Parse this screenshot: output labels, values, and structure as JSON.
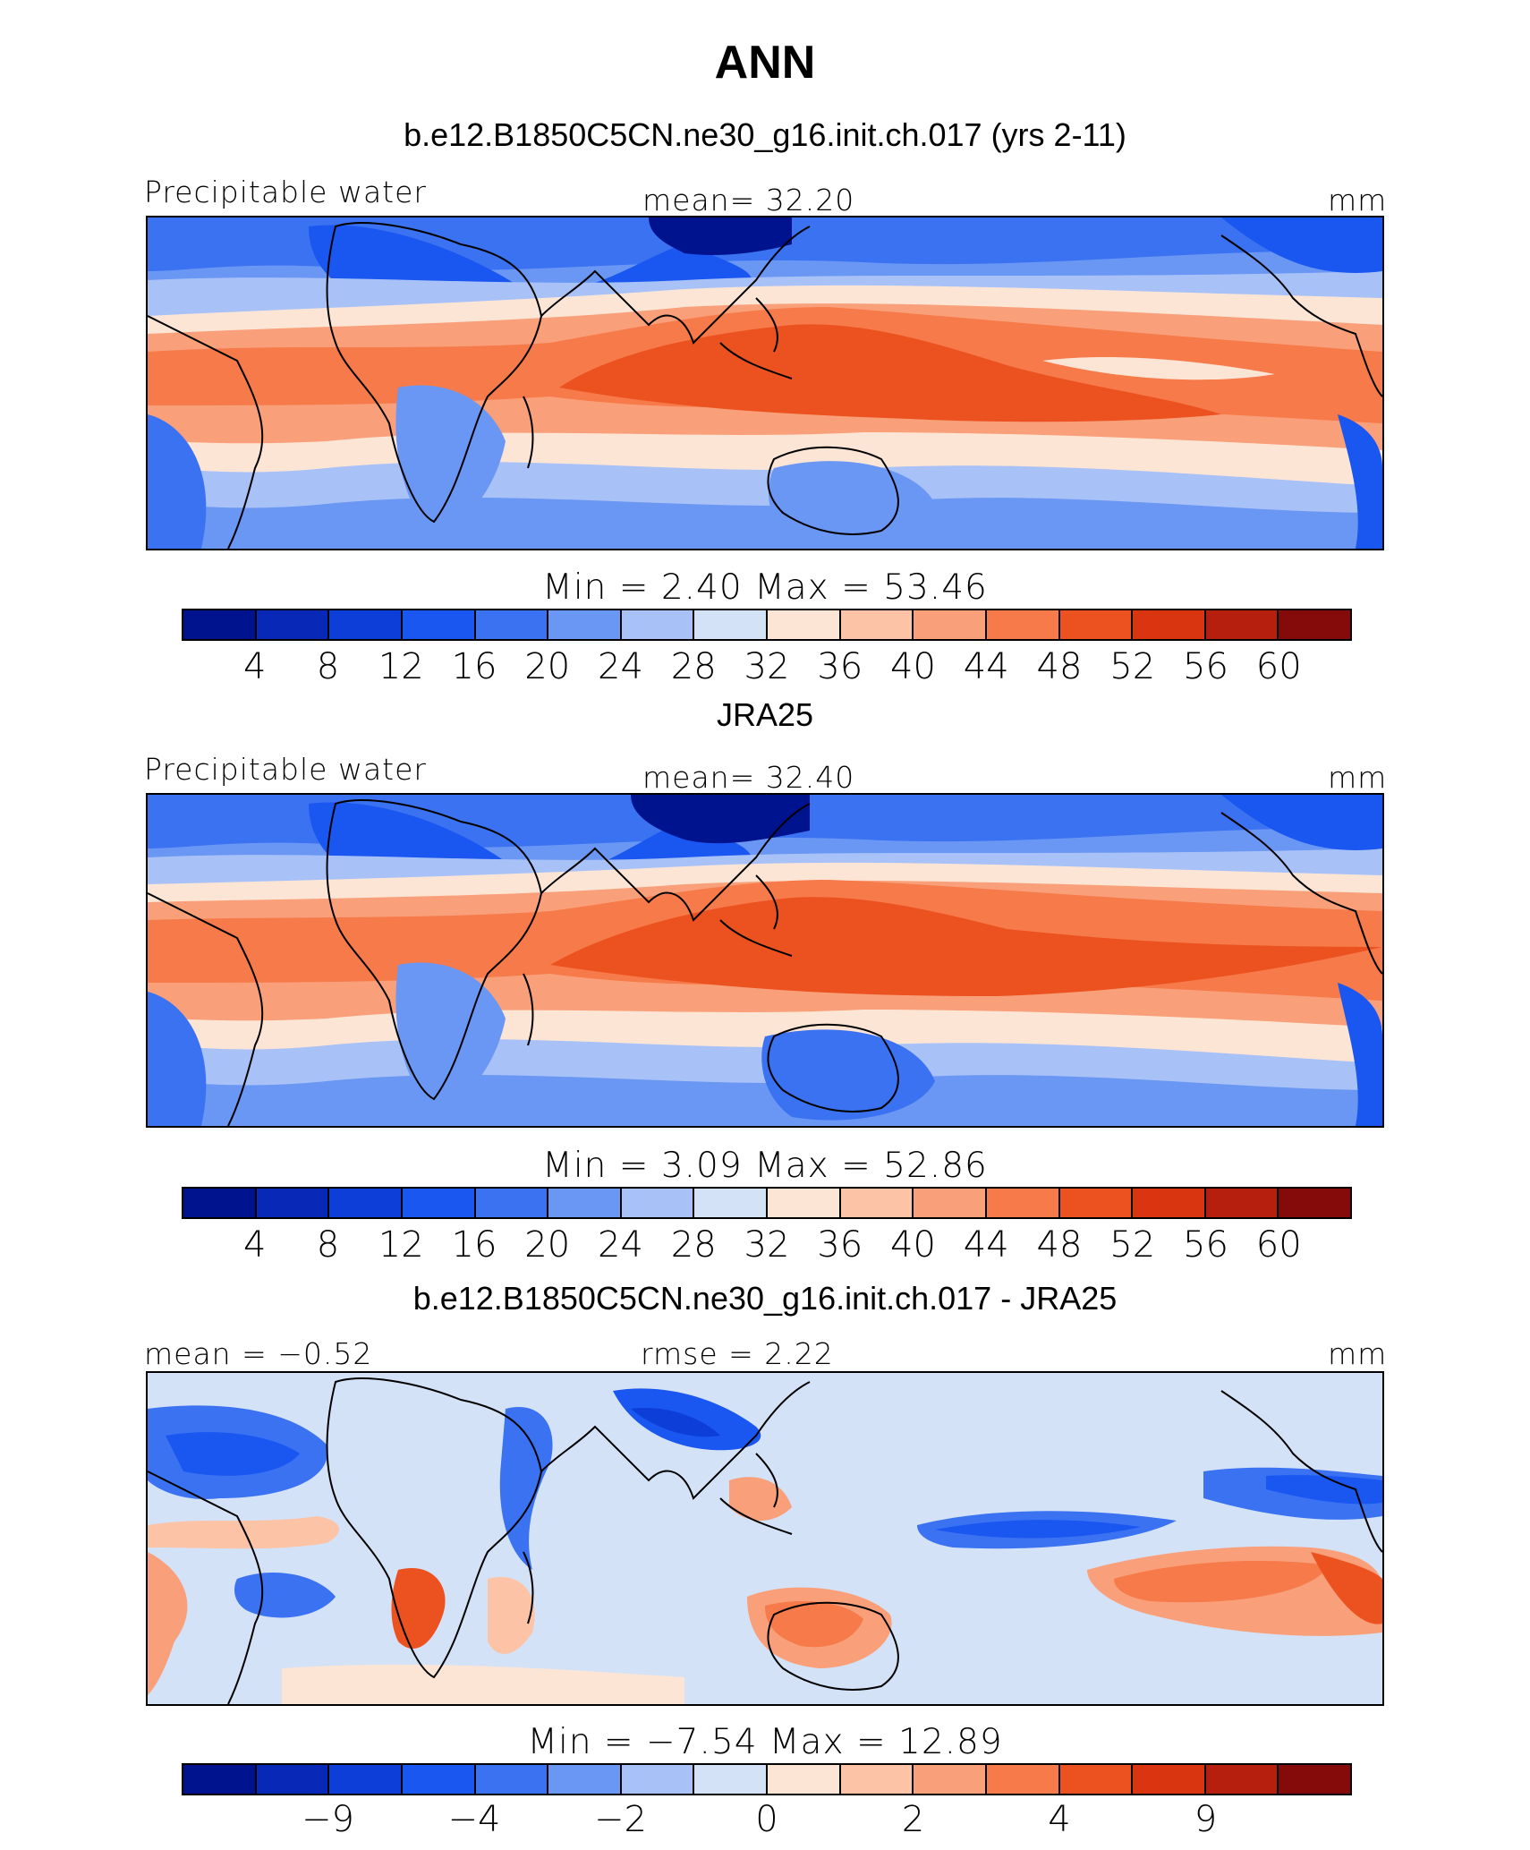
{
  "figure_title": "ANN",
  "colors": {
    "sequential": [
      "#00138f",
      "#0828b8",
      "#0d3ed8",
      "#1a56f0",
      "#3a72f2",
      "#6a96f4",
      "#a8c2f7",
      "#d4e2f7",
      "#fde5d6",
      "#fcc3a6",
      "#f9a07a",
      "#f67a4a",
      "#ec5220",
      "#d93511",
      "#b61e0d",
      "#850b0b"
    ],
    "diverging": [
      "#00138f",
      "#0828b8",
      "#0d3ed8",
      "#1a56f0",
      "#3a72f2",
      "#6a96f4",
      "#a8c2f7",
      "#d4e2f7",
      "#fde5d6",
      "#fcc3a6",
      "#f9a07a",
      "#f67a4a",
      "#ec5220",
      "#d93511",
      "#b61e0d",
      "#850b0b"
    ]
  },
  "panels": [
    {
      "title": "b.e12.B1850C5CN.ne30_g16.init.ch.017 (yrs 2-11)",
      "left_label": "Precipitable water",
      "center_label": "mean=   32.20",
      "units": "mm",
      "minmax": "Min  =    2.40  Max  =   53.46",
      "colorbar": {
        "ticks": [
          "4",
          "8",
          "12",
          "16",
          "20",
          "24",
          "28",
          "32",
          "36",
          "40",
          "44",
          "48",
          "52",
          "56",
          "60"
        ]
      }
    },
    {
      "title": "JRA25",
      "left_label": "Precipitable water",
      "center_label": "mean=   32.40",
      "units": "mm",
      "minmax": "Min  =    3.09  Max  =   52.86",
      "colorbar": {
        "ticks": [
          "4",
          "8",
          "12",
          "16",
          "20",
          "24",
          "28",
          "32",
          "36",
          "40",
          "44",
          "48",
          "52",
          "56",
          "60"
        ]
      }
    },
    {
      "title": "b.e12.B1850C5CN.ne30_g16.init.ch.017 - JRA25",
      "left_label": "mean =  −0.52",
      "center_label": "rmse =    2.22",
      "units": "mm",
      "minmax": "Min  =  −7.54  Max  =   12.89",
      "colorbar": {
        "ticks": [
          "−9",
          "−4",
          "−2",
          "0",
          "2",
          "4",
          "9"
        ]
      }
    }
  ]
}
